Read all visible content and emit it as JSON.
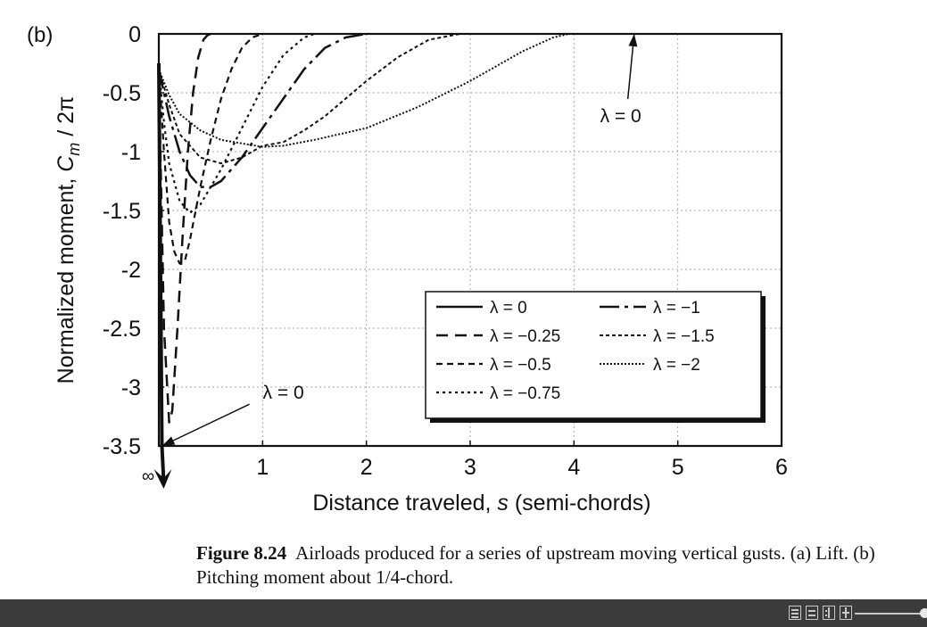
{
  "panel_label": "(b)",
  "chart_data": {
    "type": "line",
    "xlabel_prefix": "Distance traveled, ",
    "xlabel_var": "s",
    "xlabel_suffix": " (semi-chords)",
    "ylabel_prefix": "Normalized moment, ",
    "ylabel_var": "C",
    "ylabel_sub": "m",
    "ylabel_suffix": " / 2π",
    "xlim": [
      0,
      6
    ],
    "ylim": [
      -3.5,
      0
    ],
    "x_ticks": [
      {
        "v": 1,
        "label": "1"
      },
      {
        "v": 2,
        "label": "2"
      },
      {
        "v": 3,
        "label": "3"
      },
      {
        "v": 4,
        "label": "4"
      },
      {
        "v": 5,
        "label": "5"
      },
      {
        "v": 6,
        "label": "6"
      }
    ],
    "x_origin_label": "∞",
    "y_ticks": [
      {
        "v": 0,
        "label": "0"
      },
      {
        "v": -0.5,
        "label": "-0.5"
      },
      {
        "v": -1,
        "label": "-1"
      },
      {
        "v": -1.5,
        "label": "-1.5"
      },
      {
        "v": -2,
        "label": "-2"
      },
      {
        "v": -2.5,
        "label": "-2.5"
      },
      {
        "v": -3,
        "label": "-3"
      },
      {
        "v": -3.5,
        "label": "-3.5"
      }
    ],
    "grid": true,
    "legend_position": "lower-right",
    "series": [
      {
        "name": "λ = 0",
        "dash": "",
        "width": 4,
        "x": [
          0,
          0.03
        ],
        "y": [
          -0.25,
          -3.5
        ]
      },
      {
        "name": "λ = −0.25",
        "dash": "13,8",
        "width": 2.5,
        "x": [
          0,
          0.05,
          0.1,
          0.13,
          0.18,
          0.23,
          0.28,
          0.33,
          0.38,
          0.43,
          0.47,
          0.5
        ],
        "y": [
          -0.35,
          -2.5,
          -3.3,
          -3.2,
          -2.5,
          -1.7,
          -1.0,
          -0.5,
          -0.2,
          -0.05,
          -0.01,
          0
        ]
      },
      {
        "name": "λ = −0.5",
        "dash": "7,5",
        "width": 2.2,
        "x": [
          0,
          0.05,
          0.1,
          0.15,
          0.2,
          0.25,
          0.3,
          0.4,
          0.5,
          0.6,
          0.7,
          0.8,
          0.9,
          1.0
        ],
        "y": [
          -0.3,
          -1.0,
          -1.6,
          -1.85,
          -1.95,
          -1.93,
          -1.75,
          -1.3,
          -0.9,
          -0.55,
          -0.3,
          -0.12,
          -0.03,
          0
        ]
      },
      {
        "name": "λ = −0.75",
        "dash": "3,4",
        "width": 2.2,
        "x": [
          0,
          0.05,
          0.1,
          0.2,
          0.3,
          0.4,
          0.5,
          0.6,
          0.8,
          1.0,
          1.2,
          1.4,
          1.5
        ],
        "y": [
          -0.3,
          -0.75,
          -1.1,
          -1.42,
          -1.52,
          -1.45,
          -1.3,
          -1.15,
          -0.8,
          -0.45,
          -0.18,
          -0.03,
          0
        ]
      },
      {
        "name": "λ = −1",
        "dash": "22,6,4,6",
        "width": 2.5,
        "x": [
          0,
          0.1,
          0.2,
          0.3,
          0.4,
          0.5,
          0.6,
          0.7,
          0.8,
          1.0,
          1.2,
          1.4,
          1.6,
          1.8,
          2.0
        ],
        "y": [
          -0.3,
          -0.7,
          -1.0,
          -1.2,
          -1.3,
          -1.3,
          -1.25,
          -1.15,
          -1.05,
          -0.8,
          -0.55,
          -0.3,
          -0.12,
          -0.03,
          0
        ]
      },
      {
        "name": "λ = −1.5",
        "dash": "4,3",
        "width": 2,
        "x": [
          0,
          0.1,
          0.2,
          0.4,
          0.6,
          0.8,
          1.0,
          1.2,
          1.4,
          1.6,
          1.8,
          2.0,
          2.3,
          2.6,
          2.9
        ],
        "y": [
          -0.3,
          -0.6,
          -0.85,
          -1.05,
          -1.1,
          -1.05,
          -0.95,
          -0.92,
          -0.82,
          -0.7,
          -0.55,
          -0.4,
          -0.2,
          -0.05,
          0
        ]
      },
      {
        "name": "λ = −2",
        "dash": "2,2",
        "width": 2,
        "x": [
          0,
          0.1,
          0.2,
          0.4,
          0.6,
          0.8,
          1.0,
          1.2,
          1.5,
          2.0,
          2.5,
          3.0,
          3.5,
          3.8,
          3.95
        ],
        "y": [
          -0.3,
          -0.52,
          -0.68,
          -0.82,
          -0.9,
          -0.93,
          -0.96,
          -0.95,
          -0.9,
          -0.8,
          -0.62,
          -0.4,
          -0.15,
          -0.03,
          0
        ]
      }
    ],
    "annotations": [
      {
        "text": "λ = 0",
        "at_x": 4.58,
        "at_y": 0,
        "label_x": 4.45,
        "label_y": -0.75
      },
      {
        "text": "λ = 0",
        "at_x": 0.03,
        "at_y": -3.5,
        "label_x": 1.2,
        "label_y": -3.1
      }
    ]
  },
  "caption": {
    "label": "Figure 8.24",
    "text": "Airloads produced for a series of upstream moving vertical gusts. (a) Lift. (b) Pitching moment about 1/4-chord."
  },
  "statusbar": {
    "icons": [
      "single-page-icon",
      "continuous-page-icon",
      "two-page-icon",
      "grid-page-icon"
    ]
  }
}
